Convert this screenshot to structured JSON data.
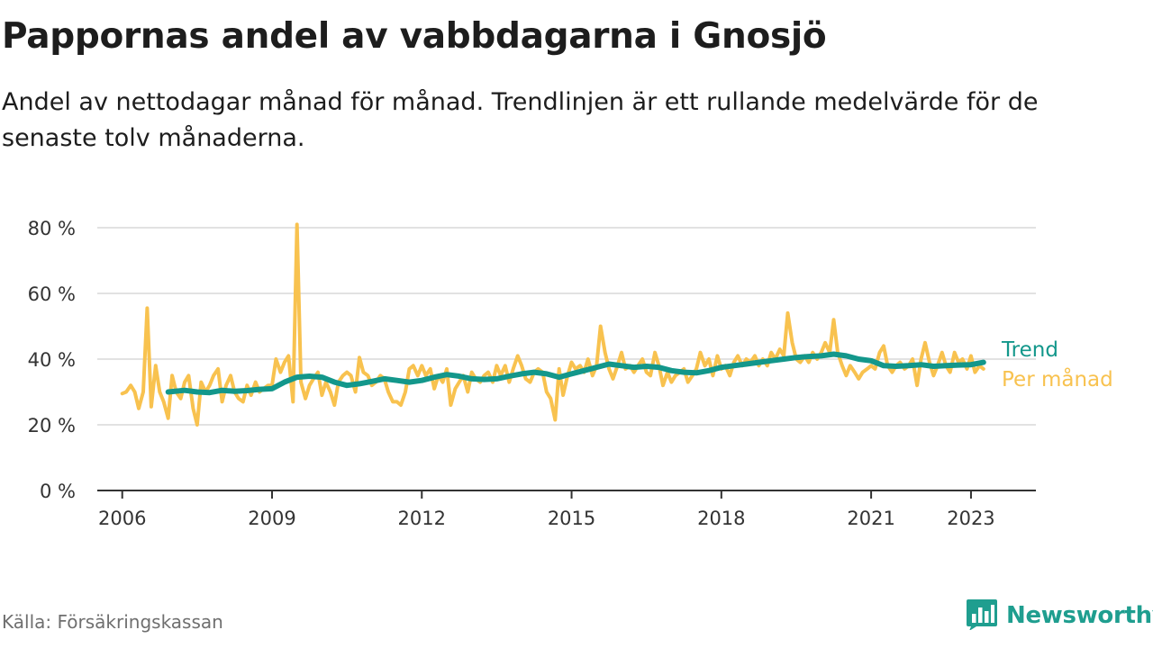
{
  "header": {
    "title": "Pappornas andel av vabbdagarna i Gnosjö",
    "subtitle": "Andel av nettodagar månad för månad. Trendlinjen är ett rullande medelvärde för de senaste tolv månaderna."
  },
  "footer": {
    "source": "Källa: Försäkringskassan",
    "brand": "Newsworthy"
  },
  "colors": {
    "monthly": "#f8c24f",
    "trend": "#13978b",
    "grid": "#d9d9d9",
    "axis": "#333333",
    "brand": "#1f9e8f"
  },
  "icons": {
    "logo": "bar-chart-speech-bubble-icon"
  },
  "chart_data": {
    "type": "line",
    "title": "Pappornas andel av vabbdagarna i Gnosjö",
    "xlabel": "",
    "ylabel": "",
    "xlim": [
      2005.5,
      2024.3
    ],
    "ylim": [
      0,
      80
    ],
    "grid": true,
    "legend": "right-end-labels",
    "x_ticks": [
      2006,
      2009,
      2012,
      2015,
      2018,
      2021,
      2023
    ],
    "y_ticks": [
      {
        "value": 0,
        "label": "0 %"
      },
      {
        "value": 20,
        "label": "20 %"
      },
      {
        "value": 40,
        "label": "40 %"
      },
      {
        "value": 60,
        "label": "60 %"
      },
      {
        "value": 80,
        "label": "80 %"
      }
    ],
    "series": [
      {
        "name": "Per månad",
        "key": "monthly",
        "points": [
          [
            2006.0,
            29.5
          ],
          [
            2006.08,
            30
          ],
          [
            2006.17,
            32
          ],
          [
            2006.25,
            30
          ],
          [
            2006.33,
            25
          ],
          [
            2006.42,
            30
          ],
          [
            2006.5,
            55.5
          ],
          [
            2006.58,
            25.5
          ],
          [
            2006.67,
            38
          ],
          [
            2006.75,
            30
          ],
          [
            2006.83,
            27
          ],
          [
            2006.92,
            22
          ],
          [
            2007.0,
            35
          ],
          [
            2007.08,
            30
          ],
          [
            2007.17,
            28
          ],
          [
            2007.25,
            33
          ],
          [
            2007.33,
            35
          ],
          [
            2007.42,
            25
          ],
          [
            2007.5,
            20
          ],
          [
            2007.58,
            33
          ],
          [
            2007.67,
            30
          ],
          [
            2007.75,
            32
          ],
          [
            2007.83,
            35
          ],
          [
            2007.92,
            37
          ],
          [
            2008.0,
            27
          ],
          [
            2008.08,
            32
          ],
          [
            2008.17,
            35
          ],
          [
            2008.25,
            30
          ],
          [
            2008.33,
            28
          ],
          [
            2008.42,
            27
          ],
          [
            2008.5,
            32
          ],
          [
            2008.58,
            29
          ],
          [
            2008.67,
            33
          ],
          [
            2008.75,
            30
          ],
          [
            2008.83,
            31
          ],
          [
            2008.92,
            32
          ],
          [
            2009.0,
            32
          ],
          [
            2009.08,
            40
          ],
          [
            2009.17,
            36
          ],
          [
            2009.25,
            39
          ],
          [
            2009.33,
            41
          ],
          [
            2009.42,
            27
          ],
          [
            2009.5,
            81
          ],
          [
            2009.58,
            33
          ],
          [
            2009.67,
            28
          ],
          [
            2009.75,
            32
          ],
          [
            2009.83,
            34
          ],
          [
            2009.92,
            36
          ],
          [
            2010.0,
            29
          ],
          [
            2010.08,
            33
          ],
          [
            2010.17,
            30
          ],
          [
            2010.25,
            26
          ],
          [
            2010.33,
            33
          ],
          [
            2010.42,
            35
          ],
          [
            2010.5,
            36
          ],
          [
            2010.58,
            35
          ],
          [
            2010.67,
            30
          ],
          [
            2010.75,
            40.5
          ],
          [
            2010.83,
            36
          ],
          [
            2010.92,
            35
          ],
          [
            2011.0,
            32
          ],
          [
            2011.08,
            33
          ],
          [
            2011.17,
            35
          ],
          [
            2011.25,
            34
          ],
          [
            2011.33,
            30
          ],
          [
            2011.42,
            27
          ],
          [
            2011.5,
            27
          ],
          [
            2011.58,
            26
          ],
          [
            2011.67,
            30
          ],
          [
            2011.75,
            37
          ],
          [
            2011.83,
            38
          ],
          [
            2011.92,
            35
          ],
          [
            2012.0,
            38
          ],
          [
            2012.08,
            35
          ],
          [
            2012.17,
            37
          ],
          [
            2012.25,
            31
          ],
          [
            2012.33,
            35
          ],
          [
            2012.42,
            33
          ],
          [
            2012.5,
            37
          ],
          [
            2012.58,
            26
          ],
          [
            2012.67,
            31
          ],
          [
            2012.75,
            33
          ],
          [
            2012.83,
            35
          ],
          [
            2012.92,
            30
          ],
          [
            2013.0,
            36
          ],
          [
            2013.08,
            34
          ],
          [
            2013.17,
            33
          ],
          [
            2013.25,
            35
          ],
          [
            2013.33,
            36
          ],
          [
            2013.42,
            33
          ],
          [
            2013.5,
            38
          ],
          [
            2013.58,
            35
          ],
          [
            2013.67,
            38
          ],
          [
            2013.75,
            33
          ],
          [
            2013.83,
            37
          ],
          [
            2013.92,
            41
          ],
          [
            2014.0,
            38
          ],
          [
            2014.08,
            34
          ],
          [
            2014.17,
            33
          ],
          [
            2014.25,
            36
          ],
          [
            2014.33,
            37
          ],
          [
            2014.42,
            36
          ],
          [
            2014.5,
            30
          ],
          [
            2014.58,
            28
          ],
          [
            2014.67,
            21.5
          ],
          [
            2014.75,
            37
          ],
          [
            2014.83,
            29
          ],
          [
            2014.92,
            35
          ],
          [
            2015.0,
            39
          ],
          [
            2015.08,
            37
          ],
          [
            2015.17,
            38
          ],
          [
            2015.25,
            36
          ],
          [
            2015.33,
            40
          ],
          [
            2015.42,
            35
          ],
          [
            2015.5,
            38
          ],
          [
            2015.58,
            50
          ],
          [
            2015.67,
            42
          ],
          [
            2015.75,
            37
          ],
          [
            2015.83,
            34
          ],
          [
            2015.92,
            38
          ],
          [
            2016.0,
            42
          ],
          [
            2016.08,
            37
          ],
          [
            2016.17,
            38
          ],
          [
            2016.25,
            36
          ],
          [
            2016.33,
            38
          ],
          [
            2016.42,
            40
          ],
          [
            2016.5,
            36
          ],
          [
            2016.58,
            35
          ],
          [
            2016.67,
            42
          ],
          [
            2016.75,
            38
          ],
          [
            2016.83,
            32
          ],
          [
            2016.92,
            36
          ],
          [
            2017.0,
            33
          ],
          [
            2017.08,
            35
          ],
          [
            2017.17,
            36
          ],
          [
            2017.25,
            37
          ],
          [
            2017.33,
            33
          ],
          [
            2017.42,
            35
          ],
          [
            2017.5,
            37
          ],
          [
            2017.58,
            42
          ],
          [
            2017.67,
            38
          ],
          [
            2017.75,
            40
          ],
          [
            2017.83,
            35
          ],
          [
            2017.92,
            41
          ],
          [
            2018.0,
            37
          ],
          [
            2018.08,
            38
          ],
          [
            2018.17,
            35
          ],
          [
            2018.25,
            39
          ],
          [
            2018.33,
            41
          ],
          [
            2018.42,
            38
          ],
          [
            2018.5,
            40
          ],
          [
            2018.58,
            39
          ],
          [
            2018.67,
            41
          ],
          [
            2018.75,
            38
          ],
          [
            2018.83,
            40
          ],
          [
            2018.92,
            38
          ],
          [
            2019.0,
            42
          ],
          [
            2019.08,
            40
          ],
          [
            2019.17,
            43
          ],
          [
            2019.25,
            41
          ],
          [
            2019.33,
            54
          ],
          [
            2019.42,
            45
          ],
          [
            2019.5,
            40
          ],
          [
            2019.58,
            39
          ],
          [
            2019.67,
            41
          ],
          [
            2019.75,
            39
          ],
          [
            2019.83,
            42
          ],
          [
            2019.92,
            40
          ],
          [
            2020.0,
            42
          ],
          [
            2020.08,
            45
          ],
          [
            2020.17,
            42
          ],
          [
            2020.25,
            52
          ],
          [
            2020.33,
            42
          ],
          [
            2020.42,
            38
          ],
          [
            2020.5,
            35
          ],
          [
            2020.58,
            38
          ],
          [
            2020.67,
            36
          ],
          [
            2020.75,
            34
          ],
          [
            2020.83,
            36
          ],
          [
            2020.92,
            37
          ],
          [
            2021.0,
            38
          ],
          [
            2021.08,
            37
          ],
          [
            2021.17,
            42
          ],
          [
            2021.25,
            44
          ],
          [
            2021.33,
            38
          ],
          [
            2021.42,
            36
          ],
          [
            2021.5,
            38
          ],
          [
            2021.58,
            39
          ],
          [
            2021.67,
            37
          ],
          [
            2021.75,
            38
          ],
          [
            2021.83,
            40
          ],
          [
            2021.92,
            32
          ],
          [
            2022.0,
            40
          ],
          [
            2022.08,
            45
          ],
          [
            2022.17,
            39
          ],
          [
            2022.25,
            35
          ],
          [
            2022.33,
            38
          ],
          [
            2022.42,
            42
          ],
          [
            2022.5,
            38
          ],
          [
            2022.58,
            36
          ],
          [
            2022.67,
            42
          ],
          [
            2022.75,
            39
          ],
          [
            2022.83,
            40
          ],
          [
            2022.92,
            37
          ],
          [
            2023.0,
            41
          ],
          [
            2023.08,
            36
          ],
          [
            2023.17,
            38
          ],
          [
            2023.25,
            37
          ]
        ]
      },
      {
        "name": "Trend",
        "key": "trend",
        "points": [
          [
            2006.92,
            30
          ],
          [
            2007.25,
            30.5
          ],
          [
            2007.5,
            30
          ],
          [
            2007.75,
            29.8
          ],
          [
            2008.0,
            30.5
          ],
          [
            2008.25,
            30.2
          ],
          [
            2008.5,
            30.4
          ],
          [
            2008.75,
            30.8
          ],
          [
            2009.0,
            31
          ],
          [
            2009.25,
            33
          ],
          [
            2009.5,
            34.5
          ],
          [
            2009.75,
            34.8
          ],
          [
            2010.0,
            34.5
          ],
          [
            2010.25,
            33
          ],
          [
            2010.5,
            32
          ],
          [
            2010.75,
            32.5
          ],
          [
            2011.0,
            33.2
          ],
          [
            2011.25,
            34
          ],
          [
            2011.5,
            33.5
          ],
          [
            2011.75,
            33
          ],
          [
            2012.0,
            33.5
          ],
          [
            2012.25,
            34.5
          ],
          [
            2012.5,
            35.3
          ],
          [
            2012.75,
            34.8
          ],
          [
            2013.0,
            34
          ],
          [
            2013.25,
            33.8
          ],
          [
            2013.5,
            34
          ],
          [
            2013.75,
            34.8
          ],
          [
            2014.0,
            35.5
          ],
          [
            2014.25,
            36
          ],
          [
            2014.5,
            35.5
          ],
          [
            2014.75,
            34.5
          ],
          [
            2015.0,
            35.5
          ],
          [
            2015.25,
            36.5
          ],
          [
            2015.5,
            37.5
          ],
          [
            2015.75,
            38.5
          ],
          [
            2016.0,
            38
          ],
          [
            2016.25,
            37.5
          ],
          [
            2016.5,
            37.8
          ],
          [
            2016.75,
            37.5
          ],
          [
            2017.0,
            36.5
          ],
          [
            2017.25,
            36
          ],
          [
            2017.5,
            35.8
          ],
          [
            2017.75,
            36.5
          ],
          [
            2018.0,
            37.5
          ],
          [
            2018.25,
            38
          ],
          [
            2018.5,
            38.5
          ],
          [
            2018.75,
            39
          ],
          [
            2019.0,
            39.5
          ],
          [
            2019.25,
            40
          ],
          [
            2019.5,
            40.5
          ],
          [
            2019.75,
            40.8
          ],
          [
            2020.0,
            41
          ],
          [
            2020.25,
            41.5
          ],
          [
            2020.5,
            41
          ],
          [
            2020.75,
            40
          ],
          [
            2021.0,
            39.5
          ],
          [
            2021.25,
            38
          ],
          [
            2021.5,
            37.8
          ],
          [
            2021.75,
            38
          ],
          [
            2022.0,
            38.3
          ],
          [
            2022.25,
            37.8
          ],
          [
            2022.5,
            38
          ],
          [
            2022.75,
            38.2
          ],
          [
            2023.0,
            38.3
          ],
          [
            2023.25,
            39
          ]
        ]
      }
    ]
  }
}
